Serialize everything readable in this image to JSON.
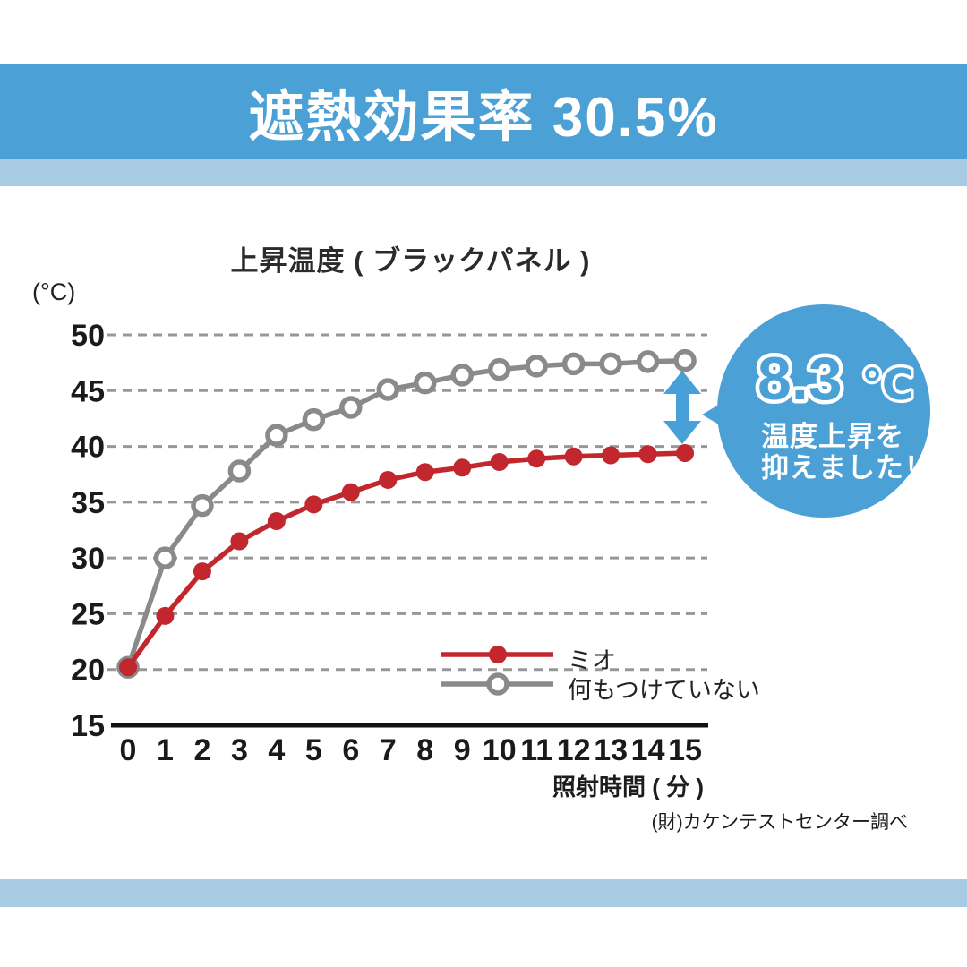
{
  "banner": {
    "title": "遮熱効果率 30.5%"
  },
  "chart": {
    "title": "上昇温度 ( ブラックパネル )",
    "y_unit_label": "(°C)",
    "x_axis_label": "照射時間 ( 分 )"
  },
  "legend": [
    {
      "label": "ミオ"
    },
    {
      "label": "何もつけていない"
    }
  ],
  "bubble": {
    "value": "8.3",
    "unit": "℃",
    "line1": "温度上昇を",
    "line2": "抑えました！"
  },
  "footer": {
    "source": "(財)カケンテストセンター調べ"
  },
  "colors": {
    "banner_blue": "#4BA1D6",
    "accent_band_blue": "#A6CBE2",
    "bubble_blue": "#4BA1D6",
    "arrow_blue": "#47A0D8",
    "series_red": "#C1272D",
    "series_gray": "#8A8A8A",
    "grid_gray": "#979797",
    "axis_black": "#111111"
  },
  "chart_data": {
    "type": "line",
    "title": "上昇温度 ( ブラックパネル )",
    "xlabel": "照射時間 ( 分 )",
    "ylabel": "(°C)",
    "x": [
      0,
      1,
      2,
      3,
      4,
      5,
      6,
      7,
      8,
      9,
      10,
      11,
      12,
      13,
      14,
      15
    ],
    "series": [
      {
        "name": "ミオ",
        "color": "#C1272D",
        "marker": "filled",
        "values": [
          20.2,
          24.8,
          28.8,
          31.5,
          33.3,
          34.8,
          35.9,
          37.0,
          37.7,
          38.1,
          38.6,
          38.9,
          39.1,
          39.2,
          39.3,
          39.4
        ]
      },
      {
        "name": "何もつけていない",
        "color": "#8A8A8A",
        "marker": "open",
        "values": [
          20.2,
          30.0,
          34.7,
          37.8,
          41.0,
          42.4,
          43.5,
          45.1,
          45.7,
          46.4,
          46.9,
          47.2,
          47.4,
          47.4,
          47.6,
          47.7
        ]
      }
    ],
    "ylim": [
      15,
      50
    ],
    "yticks": [
      15,
      20,
      25,
      30,
      35,
      40,
      45,
      50
    ],
    "grid": "horizontal-dashed",
    "legend_position": "inside-lower-right",
    "annotation": "8.3℃ 温度上昇を抑えました！ (difference between curves at 15 min)",
    "source": "(財)カケンテストセンター調べ"
  }
}
